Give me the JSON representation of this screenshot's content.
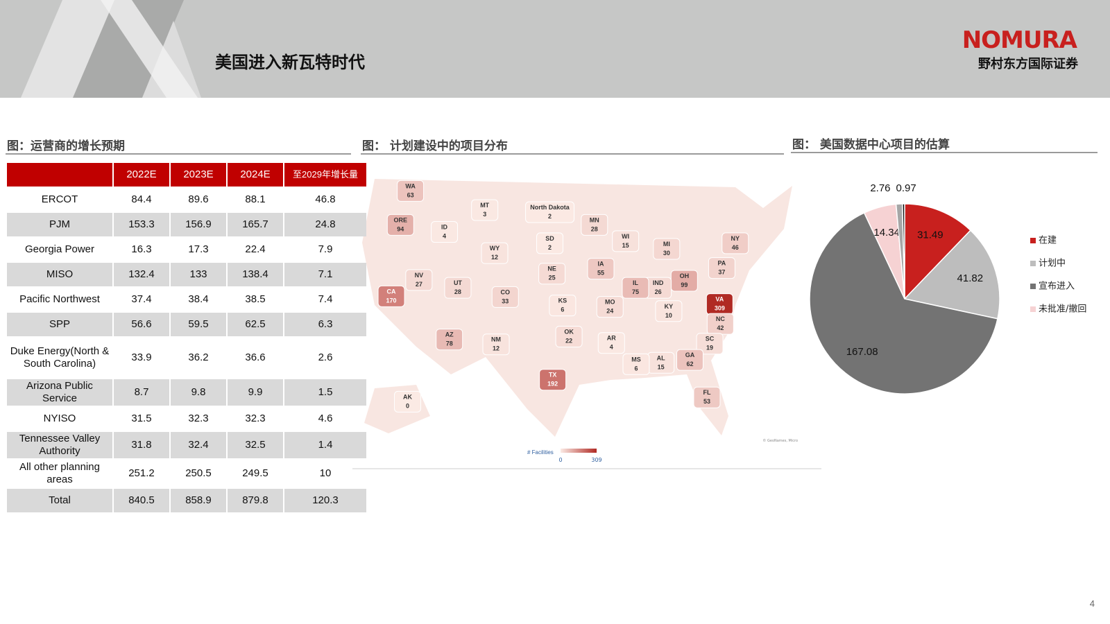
{
  "header": {
    "title": "美国进入新瓦特时代",
    "logo": "NOMURA",
    "company": "野村东方国际证券"
  },
  "table": {
    "title": "图：运营商的增长预期",
    "columns": [
      "2022E",
      "2023E",
      "2024E",
      "至2029年增长量"
    ],
    "rows": [
      [
        "ERCOT",
        84.4,
        89.6,
        88.1,
        46.8
      ],
      [
        "PJM",
        153.3,
        156.9,
        165.7,
        24.8
      ],
      [
        "Georgia Power",
        16.3,
        17.3,
        22.4,
        7.9
      ],
      [
        "MISO",
        132.4,
        133,
        138.4,
        7.1
      ],
      [
        "Pacific Northwest",
        37.4,
        38.4,
        38.5,
        7.4
      ],
      [
        "SPP",
        56.6,
        59.5,
        62.5,
        6.3
      ],
      [
        "Duke Energy(North & South Carolina)",
        33.9,
        36.2,
        36.6,
        2.6
      ],
      [
        "Arizona Public Service",
        8.7,
        9.8,
        9.9,
        1.5
      ],
      [
        "NYISO",
        31.5,
        32.3,
        32.3,
        4.6
      ],
      [
        "Tennessee Valley Authority",
        31.8,
        32.4,
        32.5,
        1.4
      ],
      [
        "All other planning areas",
        251.2,
        250.5,
        249.5,
        10
      ],
      [
        "Total",
        840.5,
        858.9,
        879.8,
        120.3
      ]
    ]
  },
  "map": {
    "title": "图： 计划建设中的项目分布",
    "states": [
      {
        "label": "WA",
        "value": 63
      },
      {
        "label": "ORE",
        "value": 94
      },
      {
        "label": "ID",
        "value": 4
      },
      {
        "label": "MT",
        "value": 3
      },
      {
        "label": "North Dakota",
        "value": 2
      },
      {
        "label": "MN",
        "value": 28
      },
      {
        "label": "WI",
        "value": 15
      },
      {
        "label": "MI",
        "value": 30
      },
      {
        "label": "NY",
        "value": 46
      },
      {
        "label": "PA",
        "value": 37
      },
      {
        "label": "OH",
        "value": 99
      },
      {
        "label": "IND",
        "value": 26
      },
      {
        "label": "IL",
        "value": 75
      },
      {
        "label": "IA",
        "value": 55
      },
      {
        "label": "NE",
        "value": 25
      },
      {
        "label": "SD",
        "value": 2
      },
      {
        "label": "WY",
        "value": 12
      },
      {
        "label": "NV",
        "value": 27
      },
      {
        "label": "UT",
        "value": 28
      },
      {
        "label": "CO",
        "value": 33
      },
      {
        "label": "KS",
        "value": 6
      },
      {
        "label": "MO",
        "value": 24
      },
      {
        "label": "KY",
        "value": 10
      },
      {
        "label": "VA",
        "value": 309
      },
      {
        "label": "NC",
        "value": 42
      },
      {
        "label": "SC",
        "value": 19
      },
      {
        "label": "GA",
        "value": 62
      },
      {
        "label": "AL",
        "value": 15
      },
      {
        "label": "MS",
        "value": 6
      },
      {
        "label": "AR",
        "value": 4
      },
      {
        "label": "OK",
        "value": 22
      },
      {
        "label": "TX",
        "value": 192
      },
      {
        "label": "NM",
        "value": 12
      },
      {
        "label": "AZ",
        "value": 78
      },
      {
        "label": "CA",
        "value": 170
      },
      {
        "label": "AK",
        "value": 0
      },
      {
        "label": "FL",
        "value": 53
      }
    ],
    "legend_title": "# Facilities",
    "scale": [
      0,
      309
    ],
    "credit": "© GeoNames, Micro"
  },
  "chart_data": {
    "type": "pie",
    "title": "图： 美国数据中心项目的估算",
    "categories": [
      "在建",
      "计划中",
      "宣布进入",
      "未批准/撤回",
      null,
      null
    ],
    "values": [
      31.49,
      41.82,
      167.08,
      14.34,
      2.76,
      0.97
    ],
    "colors": [
      "#c8201e",
      "#bdbdbd",
      "#737373",
      "#f6d2d3",
      "#a6a6a6",
      "#111111"
    ]
  },
  "page_number": "4"
}
